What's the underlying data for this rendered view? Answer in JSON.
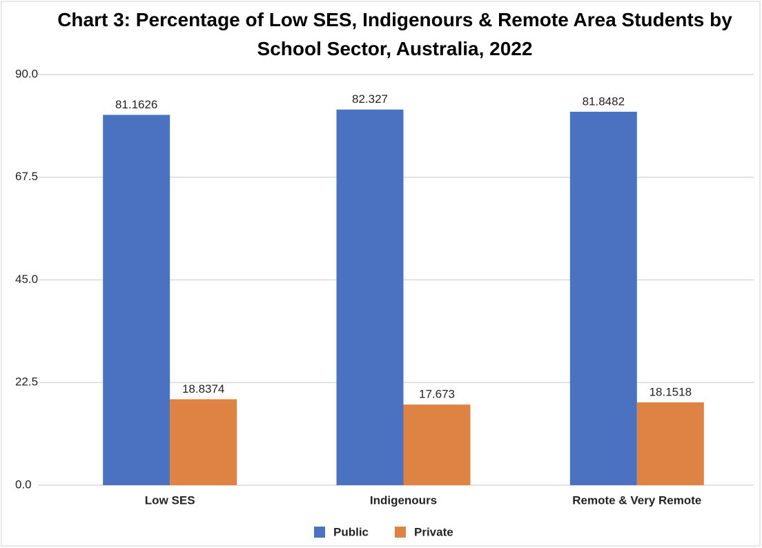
{
  "chart_data": {
    "type": "bar",
    "title": "Chart 3: Percentage of Low SES, Indigenours & Remote Area Students by School Sector, Australia, 2022",
    "categories": [
      "Low SES",
      "Indigenours",
      "Remote & Very Remote"
    ],
    "series": [
      {
        "name": "Public",
        "color": "#4a72c0",
        "values": [
          81.1626,
          82.327,
          81.8482
        ]
      },
      {
        "name": "Private",
        "color": "#df8344",
        "values": [
          18.8374,
          17.673,
          18.1518
        ]
      }
    ],
    "ylim": [
      0,
      90
    ],
    "yticks": [
      {
        "value": 0,
        "label": "0.0"
      },
      22.5,
      {
        "value": 45,
        "label": "45.0"
      },
      67.5,
      {
        "value": 90,
        "label": "90.0"
      }
    ],
    "grid": true,
    "legend": "bottom"
  }
}
